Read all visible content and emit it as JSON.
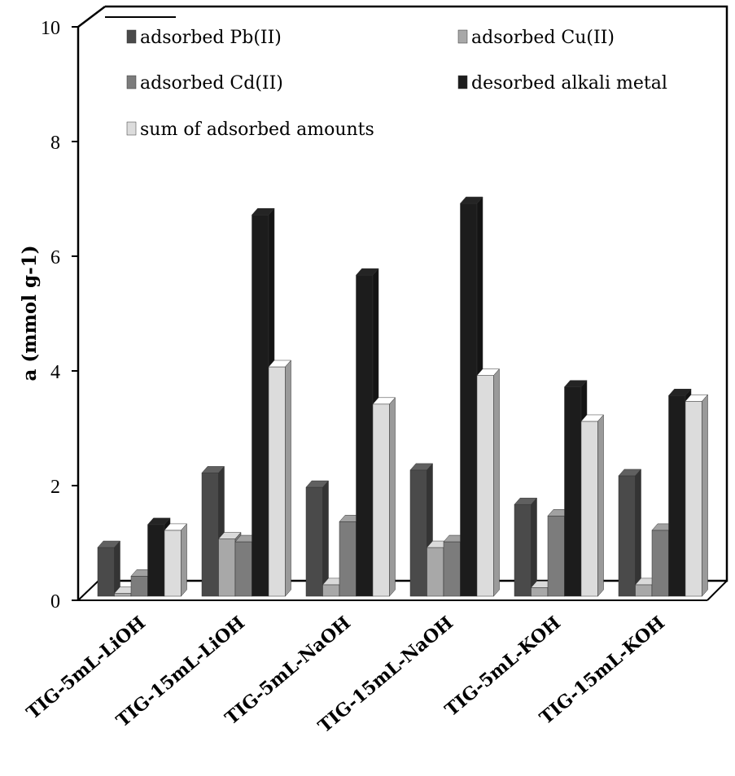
{
  "chart_data": {
    "type": "bar",
    "style": "3d-clustered-column",
    "title": "",
    "xlabel": "",
    "ylabel": "a (mmol g-1)",
    "ylim": [
      0,
      10
    ],
    "yticks": [
      "0",
      "2",
      "4",
      "6",
      "8",
      "10"
    ],
    "grid": false,
    "legend_position": "top-inside",
    "categories": [
      "TIG-5mL-LiOH",
      "TIG-15mL-LiOH",
      "TIG-5mL-NaOH",
      "TIG-15mL-NaOH",
      "TIG-5mL-KOH",
      "TIG-15mL-KOH"
    ],
    "series": [
      {
        "name": "adsorbed Pb(II)",
        "color": "#4a4a4a",
        "values": [
          0.85,
          2.15,
          1.9,
          2.2,
          1.6,
          2.1
        ]
      },
      {
        "name": "adsorbed Cu(II)",
        "color": "#a8a8a8",
        "values": [
          0.05,
          1.0,
          0.2,
          0.85,
          0.15,
          0.2
        ]
      },
      {
        "name": "adsorbed Cd(II)",
        "color": "#7c7c7c",
        "values": [
          0.35,
          0.95,
          1.3,
          0.95,
          1.4,
          1.15
        ]
      },
      {
        "name": "desorbed alkali metal",
        "color": "#1c1c1c",
        "values": [
          1.25,
          6.65,
          5.6,
          6.85,
          3.65,
          3.5
        ]
      },
      {
        "name": "sum of adsorbed amounts",
        "color": "#dcdcdc",
        "values": [
          1.15,
          4.0,
          3.35,
          3.85,
          3.05,
          3.4
        ]
      }
    ]
  }
}
